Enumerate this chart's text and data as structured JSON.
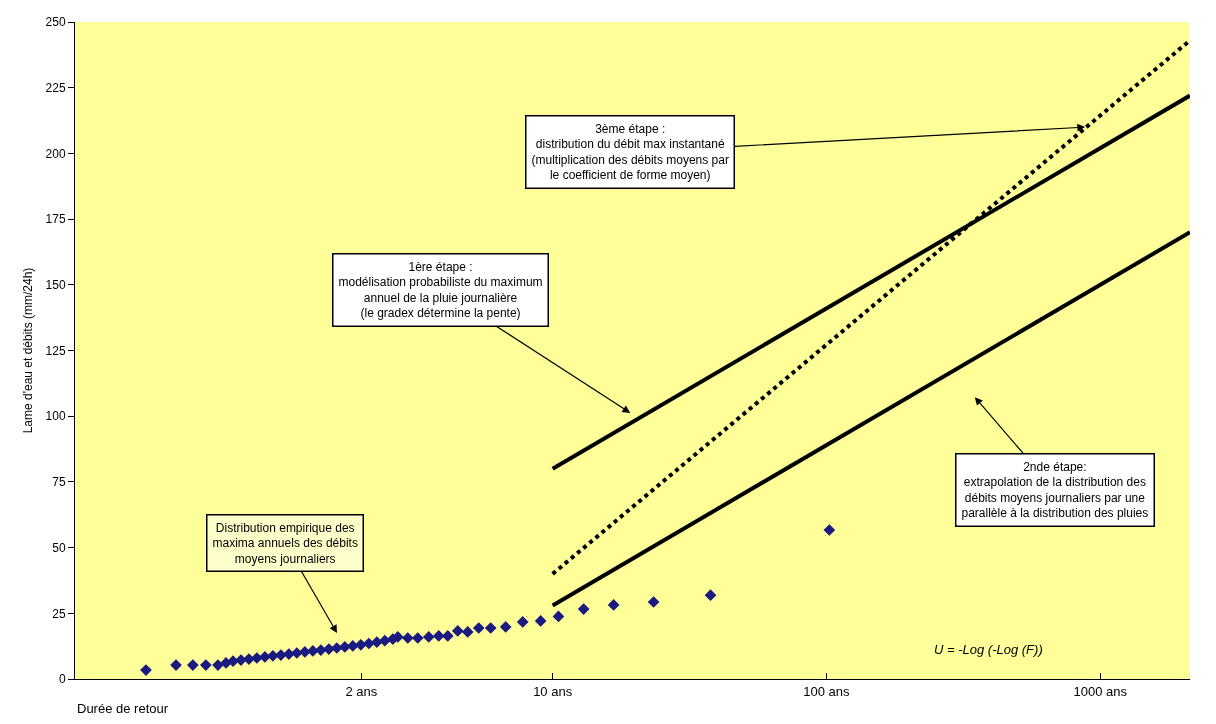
{
  "chart_data": {
    "type": "scatter",
    "xlabel": "Durée de retour",
    "ylabel": "Lame d'eau et débits (mm/24h)",
    "log": "x",
    "xlim": [
      0.18,
      2128
    ],
    "ylim": [
      0,
      250
    ],
    "xticks": [
      {
        "value": 2,
        "label": "2 ans"
      },
      {
        "value": 10,
        "label": "10 ans"
      },
      {
        "value": 100,
        "label": "100 ans"
      },
      {
        "value": 1000,
        "label": "1000 ans"
      }
    ],
    "yticks": [
      0,
      25,
      50,
      75,
      100,
      125,
      150,
      175,
      200,
      225,
      250
    ],
    "grid": false,
    "series": [
      {
        "type": "scatter",
        "marker": "diamond",
        "color": "#1a1a80",
        "x": [
          0.327,
          0.421,
          0.485,
          0.541,
          0.599,
          0.641,
          0.68,
          0.727,
          0.777,
          0.831,
          0.889,
          0.951,
          1.017,
          1.088,
          1.163,
          1.244,
          1.331,
          1.423,
          1.522,
          1.628,
          1.741,
          1.862,
          1.992,
          2.131,
          2.279,
          2.437,
          2.607,
          2.719,
          2.957,
          3.216,
          3.527,
          3.836,
          4.139,
          4.501,
          4.895,
          5.37,
          5.939,
          6.737,
          7.773,
          9.04,
          10.5,
          12.98,
          16.7,
          23.37,
          37.73,
          102.5
        ],
        "values": [
          3.4,
          5.3,
          5.3,
          5.3,
          5.3,
          6.1,
          6.8,
          7.2,
          7.6,
          8.0,
          8.4,
          8.8,
          9.1,
          9.5,
          9.9,
          10.3,
          10.7,
          11.0,
          11.4,
          11.8,
          12.2,
          12.6,
          13.0,
          13.5,
          14.0,
          14.6,
          15.2,
          16.0,
          15.6,
          15.6,
          16.0,
          16.4,
          16.4,
          18.3,
          17.9,
          19.4,
          19.4,
          19.8,
          21.7,
          22.1,
          23.8,
          26.6,
          28.2,
          29.3,
          31.9,
          56.7
        ]
      },
      {
        "type": "line",
        "marker": "none",
        "line_style": "solid",
        "color": "#000000",
        "x": [
          10,
          2128
        ],
        "values": [
          80,
          222
        ]
      },
      {
        "type": "line",
        "marker": "none",
        "line_style": "solid",
        "color": "#000000",
        "x": [
          10,
          2128
        ],
        "values": [
          28,
          170
        ]
      },
      {
        "type": "line",
        "marker": "none",
        "line_style": "dotted",
        "color": "#000000",
        "x": [
          10,
          2128
        ],
        "values": [
          40,
          243
        ]
      }
    ],
    "annotations": [
      "Distribution empirique des\nmaxima annuels des débits\nmoyens journaliers",
      "1ère étape :\nmodélisation probabiliste du maximum\nannuel de la pluie journalière\n(le gradex détermine la pente)",
      "2nde étape:\nextrapolation de la distribution des\ndébits moyens journaliers par une\nparallèle à la distribution des pluies",
      {
        "text": "3ème étape :\ndistribution du débit max instantané\n(multiplication des débits moyens par\nle coefficient de forme moyen)",
        "x": 881,
        "y": 210
      },
      "U = -Log (-Log (F))"
    ]
  }
}
